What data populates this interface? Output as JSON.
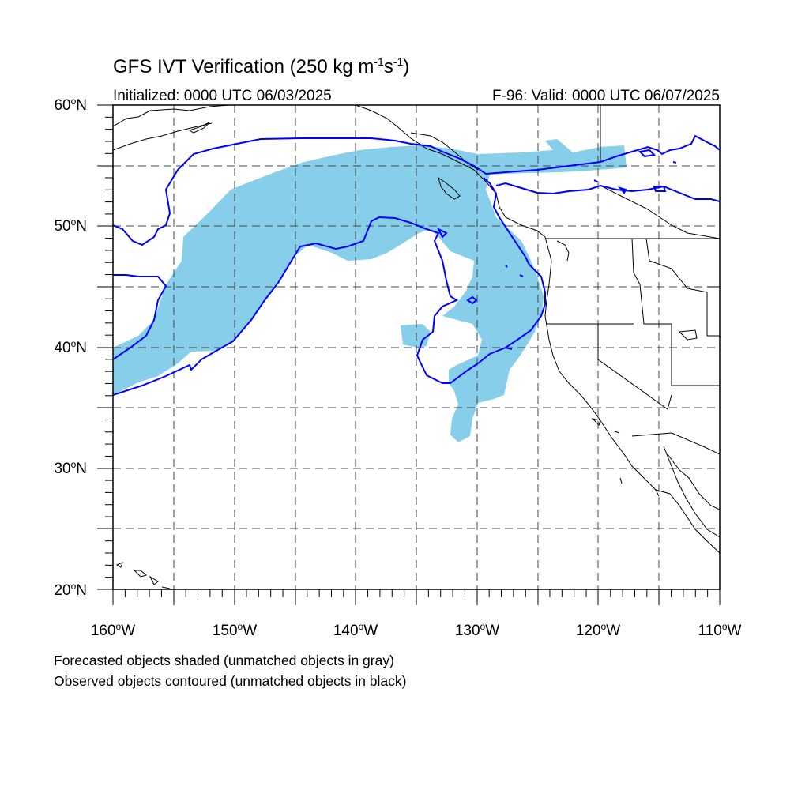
{
  "title": {
    "main": "GFS IVT Verification (250 kg m",
    "exp1": "-1",
    "mid": "s",
    "exp2": "-1",
    "end": ")"
  },
  "subtitle": {
    "left": "Initialized: 0000 UTC 06/03/2025",
    "right": "F-96: Valid: 0000 UTC 06/07/2025"
  },
  "lat_labels": [
    "60",
    "50",
    "40",
    "30",
    "20"
  ],
  "lat_suffix": "N",
  "lon_labels": [
    "160",
    "150",
    "140",
    "130",
    "120",
    "110"
  ],
  "lon_suffix": "W",
  "degree_symbol": "o",
  "notes": [
    "Forecasted objects shaded (unmatched objects in gray)",
    "Observed objects contoured (unmatched objects in black)"
  ],
  "map": {
    "extent": {
      "lon_west": -160,
      "lon_east": -110,
      "lat_south": 20,
      "lat_north": 60
    },
    "gridlines": "dashed every 5 degrees",
    "forecast_fill_color": "#87CEEB",
    "observed_contour_color": "#0000FF",
    "coastline_color": "#000000"
  }
}
